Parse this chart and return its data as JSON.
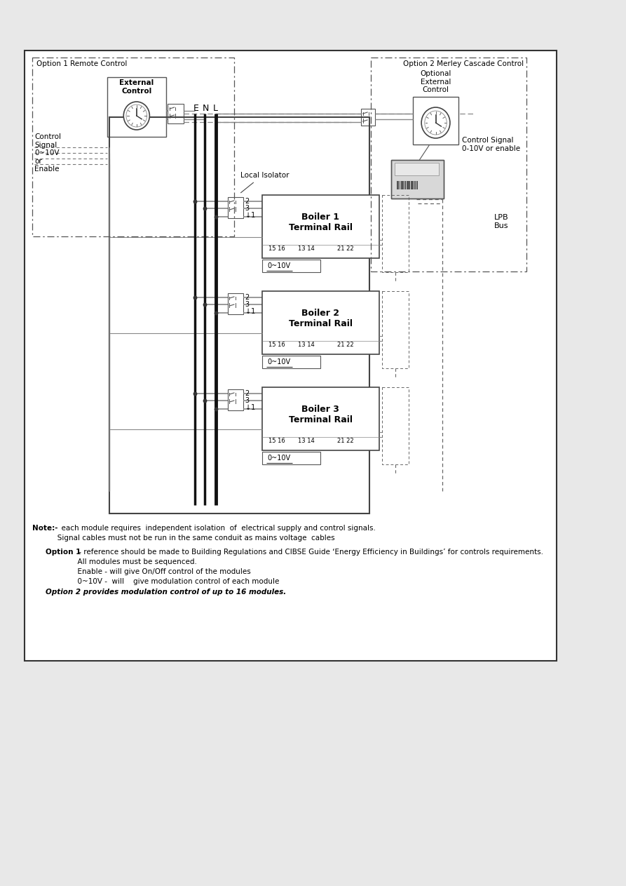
{
  "bg_color": "#e8e8e8",
  "diagram_bg": "#ffffff",
  "border_color": "#333333",
  "opt1_label": "Option 1 Remote Control",
  "opt2_label": "Option 2 Merley Cascade Control",
  "opt2_sub": "Optional\nExternal\nControl",
  "ext_ctrl_label": "External\nControl",
  "ctrl_signal_label": "Control\nSignal\n0~10V\nor\nEnable",
  "ctrl_signal2_label": "Control Signal\n0-10V or enable",
  "lpb_label": "LPB\nBus",
  "local_iso_label": "Local Isolator",
  "boiler_labels": [
    "Boiler 1\nTerminal Rail",
    "Boiler 2\nTerminal Rail",
    "Boiler 3\nTerminal Rail"
  ],
  "zero_10v_label": "0~10V",
  "note_bold": "Note:-",
  "note_rest": "  each module requires  independent isolation  of  electrical supply and control signals.\n           Signal cables must not be run in the same conduit as mains voltage  cables",
  "opt1_note_bold": "Option 1",
  "opt1_note_rest": " - reference should be made to Building Regulations and CIBSE Guide ‘Energy Efficiency in Buildings’ for controls requirements.\n              All modules must be sequenced.\n              Enable - will give On/Off control of the modules\n              0~10V -  will    give modulation control of each module",
  "opt2_note": "Option 2 provides modulation control of up to 16 modules.",
  "text_color": "#000000",
  "dark_gray": "#555555",
  "mid_gray": "#888888",
  "light_gray": "#cccccc",
  "watermark_color": "#b0b0d0"
}
